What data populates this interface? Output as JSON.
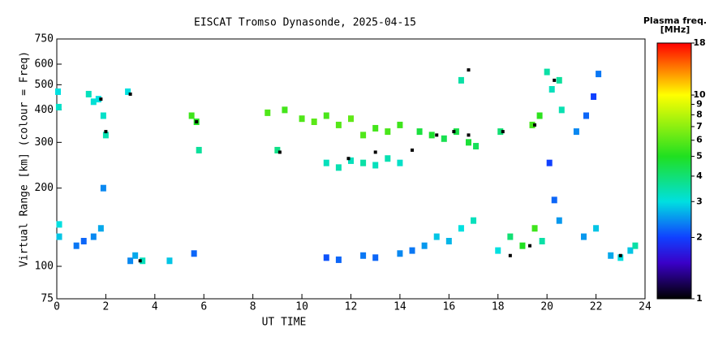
{
  "chart_data": {
    "type": "scatter",
    "title": "EISCAT Tromso Dynasonde, 2025-04-15",
    "xlabel": "UT TIME",
    "ylabel": "Virtual Range [km] (colour = Freq)",
    "xlim": [
      0,
      24
    ],
    "xticks": [
      0,
      2,
      4,
      6,
      8,
      10,
      12,
      14,
      16,
      18,
      20,
      22,
      24
    ],
    "ylim": [
      75,
      750
    ],
    "yticks": [
      75,
      100,
      200,
      300,
      400,
      500,
      600,
      750
    ],
    "ylog": true,
    "colorbar": {
      "title": "Plasma freq.",
      "units": "[MHz]",
      "lim": [
        1,
        18
      ],
      "ticks": [
        1,
        2,
        3,
        4,
        5,
        6,
        7,
        8,
        9,
        10,
        18
      ],
      "log": true,
      "colorscale": [
        {
          "value": 1,
          "color": "#000000"
        },
        {
          "value": 1.5,
          "color": "#3a00c8"
        },
        {
          "value": 2,
          "color": "#1040ff"
        },
        {
          "value": 3,
          "color": "#00e0e0"
        },
        {
          "value": 5,
          "color": "#20e020"
        },
        {
          "value": 10,
          "color": "#ffff00"
        },
        {
          "value": 18,
          "color": "#ff0000"
        }
      ]
    },
    "series": [
      {
        "x": [
          0.05,
          0.08,
          0.1,
          0.1,
          0.8,
          1.3,
          1.5,
          1.7,
          1.9,
          2.0,
          1.1,
          1.5,
          1.8,
          1.9,
          2.9,
          3.0,
          3.2,
          3.5,
          4.6,
          5.5,
          5.7,
          5.8,
          5.6,
          8.6,
          9.0,
          9.3,
          10.0,
          10.5,
          11.0,
          11.5,
          12.0,
          12.5,
          13.0,
          13.5,
          14.0,
          11.0,
          11.5,
          12.0,
          12.5,
          13.0,
          13.5,
          14.0,
          11.0,
          11.5,
          12.5,
          13.0,
          14.0,
          14.5,
          15.0,
          15.5,
          16.0,
          16.5,
          17.0,
          14.8,
          15.3,
          15.8,
          16.3,
          16.5,
          16.8,
          17.1,
          18.1,
          18.0,
          18.5,
          19.0,
          19.5,
          19.8,
          19.4,
          19.7,
          20.0,
          20.2,
          20.5,
          20.6,
          20.1,
          20.3,
          20.5,
          21.2,
          21.6,
          21.9,
          22.1,
          21.5,
          22.0,
          22.6,
          23.0,
          23.4,
          23.6
        ],
        "y": [
          470,
          410,
          130,
          145,
          120,
          460,
          430,
          440,
          380,
          320,
          125,
          130,
          140,
          200,
          470,
          105,
          110,
          105,
          105,
          380,
          360,
          280,
          112,
          390,
          280,
          400,
          370,
          360,
          380,
          350,
          370,
          320,
          340,
          330,
          350,
          250,
          240,
          255,
          250,
          245,
          260,
          250,
          108,
          106,
          110,
          108,
          112,
          115,
          120,
          130,
          125,
          140,
          150,
          330,
          320,
          310,
          330,
          520,
          300,
          290,
          330,
          115,
          130,
          120,
          140,
          125,
          350,
          380,
          560,
          480,
          520,
          400,
          250,
          180,
          150,
          330,
          380,
          450,
          550,
          130,
          140,
          110,
          108,
          115,
          120
        ],
        "freq": [
          3.0,
          3.2,
          2.8,
          3.0,
          2.3,
          3.3,
          3.1,
          3.0,
          3.2,
          3.4,
          2.2,
          2.4,
          2.6,
          2.4,
          3.0,
          2.4,
          2.6,
          3.3,
          2.8,
          5.5,
          5.0,
          3.6,
          2.2,
          5.8,
          3.8,
          5.6,
          5.8,
          6.0,
          5.7,
          5.9,
          6.1,
          5.8,
          5.6,
          5.7,
          5.5,
          3.3,
          3.4,
          3.3,
          3.5,
          3.3,
          3.4,
          3.2,
          2.1,
          2.2,
          2.3,
          2.2,
          2.4,
          2.3,
          2.5,
          2.8,
          2.7,
          3.0,
          3.3,
          4.6,
          4.8,
          4.4,
          4.5,
          3.5,
          4.7,
          4.3,
          4.0,
          3.0,
          4.0,
          5.0,
          5.5,
          3.5,
          5.6,
          5.2,
          3.5,
          3.3,
          3.6,
          3.4,
          2.0,
          2.2,
          2.5,
          2.4,
          2.2,
          2.0,
          2.3,
          2.5,
          2.8,
          2.6,
          3.0,
          2.8,
          3.5
        ]
      },
      {
        "color": "#000000",
        "x": [
          1.8,
          2.0,
          3.0,
          3.4,
          5.7,
          9.1,
          11.9,
          13.0,
          14.5,
          15.5,
          16.2,
          16.8,
          18.2,
          19.5,
          20.3,
          18.5,
          19.3,
          23.0,
          16.8
        ],
        "y": [
          440,
          330,
          460,
          105,
          360,
          275,
          260,
          275,
          280,
          320,
          330,
          320,
          330,
          350,
          520,
          110,
          120,
          110,
          570
        ]
      }
    ]
  }
}
